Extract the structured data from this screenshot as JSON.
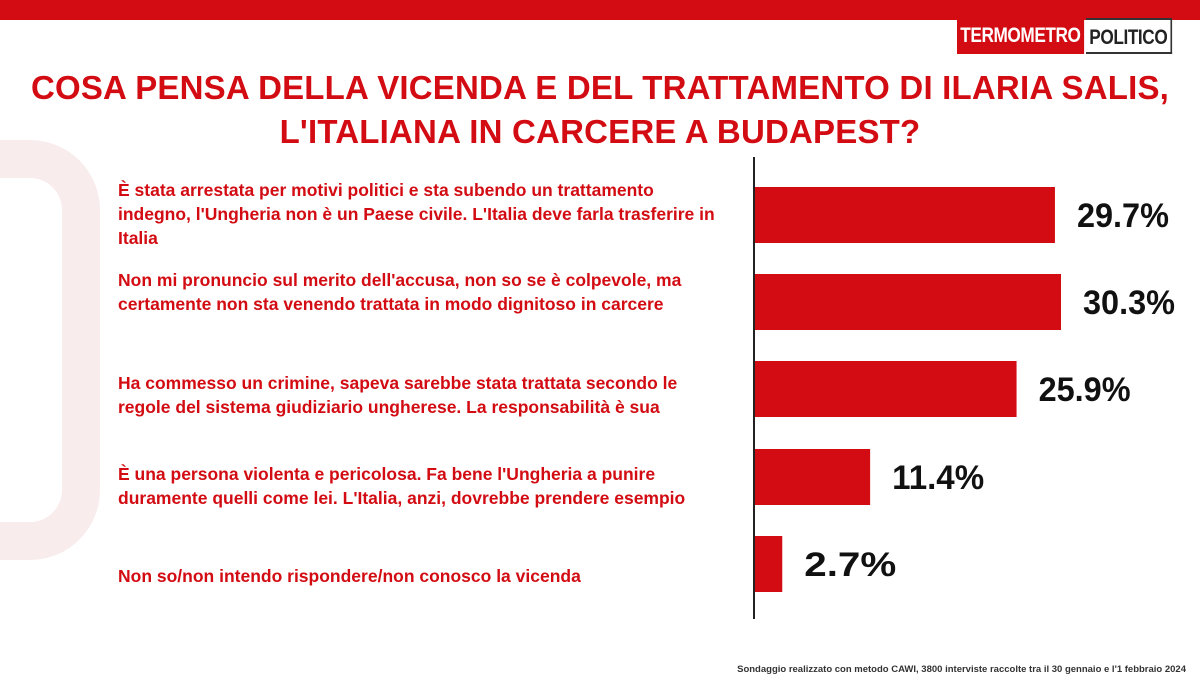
{
  "header": {
    "brand_left": "TERMOMETRO",
    "brand_right": "POLITICO",
    "title": "COSA PENSA DELLA VICENDA E DEL TRATTAMENTO DI ILARIA SALIS, L'ITALIANA IN CARCERE A BUDAPEST?"
  },
  "colors": {
    "accent": "#d20c12",
    "bar": "#d20c12",
    "text_dark": "#111111"
  },
  "chart_data": {
    "type": "bar",
    "orientation": "horizontal",
    "title": "COSA PENSA DELLA VICENDA E DEL TRATTAMENTO DI ILARIA SALIS, L'ITALIANA IN CARCERE A BUDAPEST?",
    "categories": [
      "È stata arrestata per motivi politici e sta subendo un trattamento indegno, l'Ungheria non è un Paese civile. L'Italia deve farla trasferire in Italia",
      "Non mi pronuncio sul merito dell'accusa, non so se è colpevole, ma certamente non sta venendo trattata in modo dignitoso in carcere",
      "Ha commesso un crimine, sapeva sarebbe stata trattata secondo le regole del sistema giudiziario ungherese. La responsabilità è sua",
      "È una persona violenta e pericolosa. Fa bene l'Ungheria a punire duramente quelli come lei. L'Italia, anzi, dovrebbe prendere esempio",
      "Non so/non intendo rispondere/non conosco la vicenda"
    ],
    "values": [
      29.7,
      30.3,
      25.9,
      11.4,
      2.7
    ],
    "labels": [
      "29.7%",
      "30.3%",
      "25.9%",
      "11.4%",
      "2.7%"
    ],
    "xlim": [
      0,
      30.3
    ],
    "grid": false,
    "legend": "none"
  },
  "footnote": "Sondaggio realizzato con metodo CAWI, 3800 interviste raccolte tra il 30 gennaio e l'1 febbraio 2024"
}
